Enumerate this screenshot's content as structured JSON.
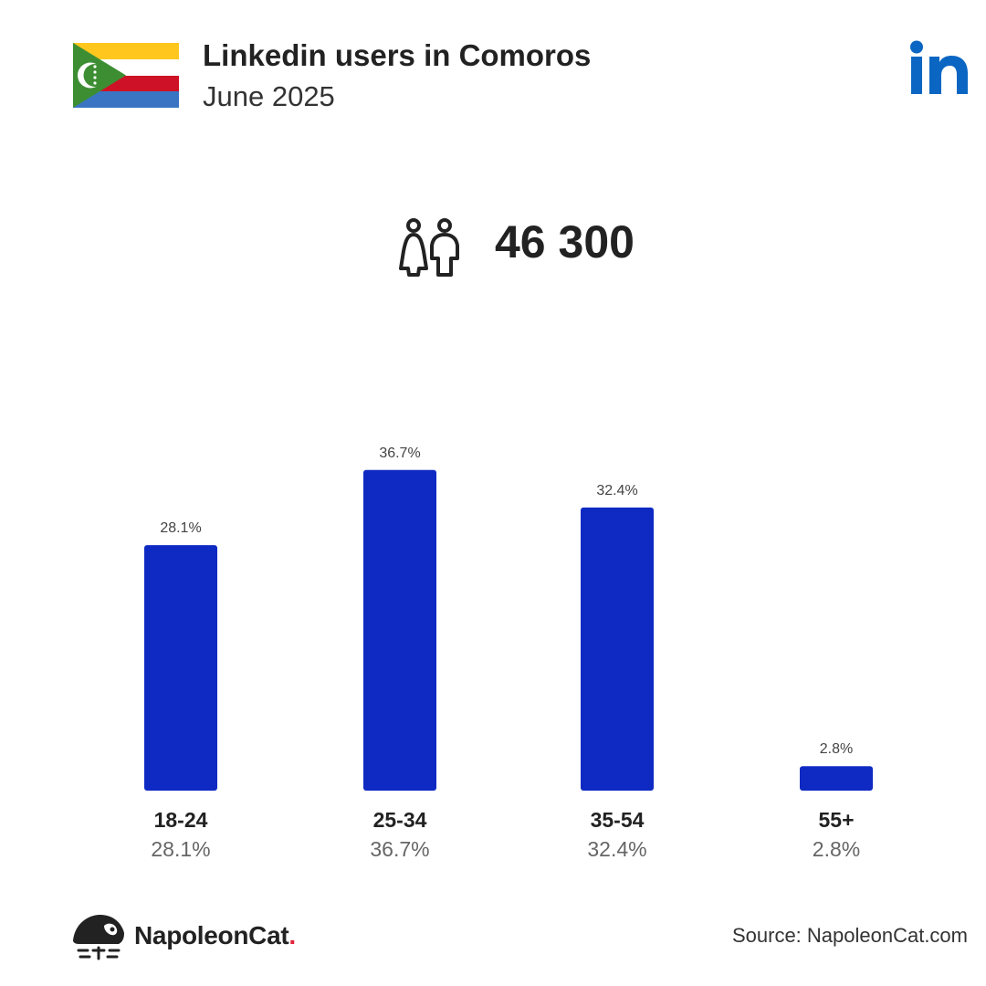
{
  "header": {
    "title": "Linkedin users in Comoros",
    "subtitle": "June 2025"
  },
  "total_users": "46 300",
  "icons": {
    "flag": "comoros-flag-icon",
    "platform": "linkedin-logo-icon",
    "users": "users-icon",
    "brand": "napoleoncat-logo-icon"
  },
  "colors": {
    "bar": "#0f2ac3",
    "linkedin": "#0a66c2",
    "text": "#222222",
    "muted": "#666666"
  },
  "chart_data": {
    "type": "bar",
    "categories": [
      "18-24",
      "25-34",
      "35-54",
      "55+"
    ],
    "values": [
      28.1,
      36.7,
      32.4,
      2.8
    ],
    "labels": [
      "28.1%",
      "36.7%",
      "32.4%",
      "2.8%"
    ],
    "title": "",
    "xlabel": "",
    "ylabel": "",
    "ylim": [
      0,
      40
    ]
  },
  "footer": {
    "brand_name": "NapoleonCat",
    "brand_dot": ".",
    "source": "Source: NapoleonCat.com"
  }
}
